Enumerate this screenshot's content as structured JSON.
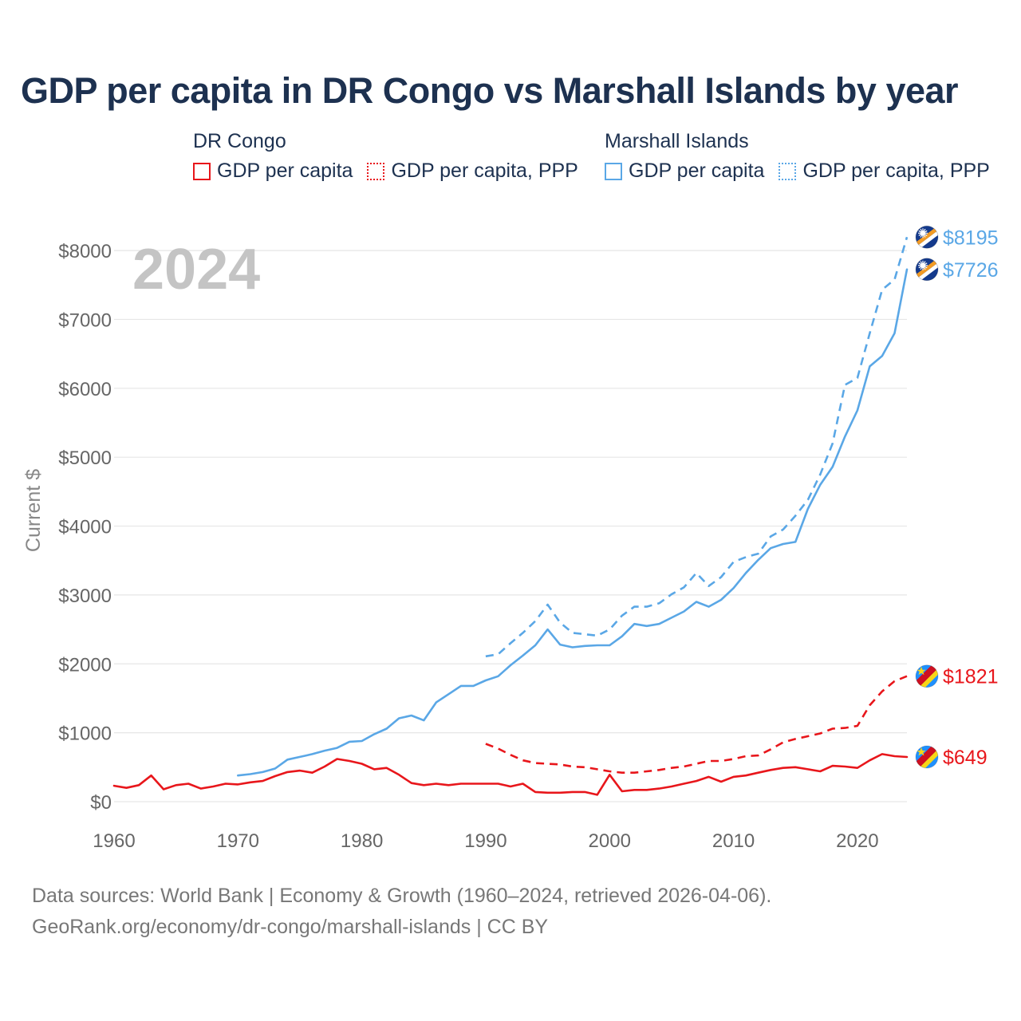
{
  "page": {
    "title": "GDP per capita in DR Congo vs Marshall Islands by year",
    "footer_sources": "Data sources: World Bank | Economy & Growth (1960–2024, retrieved 2026-04-06).",
    "footer_url": "GeoRank.org/economy/dr-congo/marshall-islands | CC BY"
  },
  "legend": {
    "groups": [
      {
        "name": "DR Congo",
        "color": "#e8161b",
        "items": [
          {
            "label": "GDP per capita",
            "style": "solid"
          },
          {
            "label": "GDP per capita, PPP",
            "style": "dotted"
          }
        ]
      },
      {
        "name": "Marshall Islands",
        "color": "#5aa7e6",
        "items": [
          {
            "label": "GDP per capita",
            "style": "solid"
          },
          {
            "label": "GDP per capita, PPP",
            "style": "dotted"
          }
        ]
      }
    ]
  },
  "icons": {
    "marshall_flag": "marshall-islands-flag-icon",
    "congo_flag": "dr-congo-flag-icon"
  },
  "chart_data": {
    "type": "line",
    "title": "GDP per capita in DR Congo vs Marshall Islands by year",
    "year_watermark": "2024",
    "xlabel": "",
    "ylabel": "Current $",
    "xlim": [
      1960,
      2024
    ],
    "ylim": [
      0,
      8800
    ],
    "x_ticks": [
      1960,
      1970,
      1980,
      1990,
      2000,
      2010,
      2020
    ],
    "y_ticks": [
      0,
      1000,
      2000,
      3000,
      4000,
      5000,
      6000,
      7000,
      8000
    ],
    "y_tick_labels": [
      "$0",
      "$1000",
      "$2000",
      "$3000",
      "$4000",
      "$5000",
      "$6000",
      "$7000",
      "$8000"
    ],
    "grid": true,
    "series": [
      {
        "name": "Marshall Islands GDP per capita, PPP",
        "country": "Marshall Islands",
        "color": "#5aa7e6",
        "dash": "dashed",
        "end_label": "$8195",
        "flag": "marshall",
        "points": [
          [
            1990,
            2110
          ],
          [
            1991,
            2140
          ],
          [
            1992,
            2300
          ],
          [
            1993,
            2450
          ],
          [
            1994,
            2620
          ],
          [
            1995,
            2860
          ],
          [
            1996,
            2600
          ],
          [
            1997,
            2450
          ],
          [
            1998,
            2430
          ],
          [
            1999,
            2410
          ],
          [
            2000,
            2500
          ],
          [
            2001,
            2700
          ],
          [
            2002,
            2830
          ],
          [
            2003,
            2830
          ],
          [
            2004,
            2880
          ],
          [
            2005,
            3010
          ],
          [
            2006,
            3110
          ],
          [
            2007,
            3320
          ],
          [
            2008,
            3130
          ],
          [
            2009,
            3260
          ],
          [
            2010,
            3480
          ],
          [
            2011,
            3550
          ],
          [
            2012,
            3600
          ],
          [
            2013,
            3850
          ],
          [
            2014,
            3950
          ],
          [
            2015,
            4150
          ],
          [
            2016,
            4380
          ],
          [
            2017,
            4750
          ],
          [
            2018,
            5200
          ],
          [
            2019,
            6050
          ],
          [
            2020,
            6150
          ],
          [
            2021,
            6800
          ],
          [
            2022,
            7430
          ],
          [
            2023,
            7580
          ],
          [
            2024,
            8195
          ]
        ]
      },
      {
        "name": "Marshall Islands GDP per capita",
        "country": "Marshall Islands",
        "color": "#5aa7e6",
        "dash": "solid",
        "end_label": "$7726",
        "flag": "marshall",
        "points": [
          [
            1970,
            380
          ],
          [
            1971,
            400
          ],
          [
            1972,
            430
          ],
          [
            1973,
            480
          ],
          [
            1974,
            610
          ],
          [
            1975,
            650
          ],
          [
            1976,
            690
          ],
          [
            1977,
            740
          ],
          [
            1978,
            780
          ],
          [
            1979,
            870
          ],
          [
            1980,
            880
          ],
          [
            1981,
            980
          ],
          [
            1982,
            1060
          ],
          [
            1983,
            1210
          ],
          [
            1984,
            1250
          ],
          [
            1985,
            1180
          ],
          [
            1986,
            1440
          ],
          [
            1987,
            1560
          ],
          [
            1988,
            1680
          ],
          [
            1989,
            1680
          ],
          [
            1990,
            1760
          ],
          [
            1991,
            1820
          ],
          [
            1992,
            1980
          ],
          [
            1993,
            2120
          ],
          [
            1994,
            2270
          ],
          [
            1995,
            2500
          ],
          [
            1996,
            2280
          ],
          [
            1997,
            2240
          ],
          [
            1998,
            2260
          ],
          [
            1999,
            2270
          ],
          [
            2000,
            2270
          ],
          [
            2001,
            2400
          ],
          [
            2002,
            2580
          ],
          [
            2003,
            2550
          ],
          [
            2004,
            2580
          ],
          [
            2005,
            2670
          ],
          [
            2006,
            2760
          ],
          [
            2007,
            2900
          ],
          [
            2008,
            2830
          ],
          [
            2009,
            2930
          ],
          [
            2010,
            3100
          ],
          [
            2011,
            3320
          ],
          [
            2012,
            3510
          ],
          [
            2013,
            3680
          ],
          [
            2014,
            3740
          ],
          [
            2015,
            3770
          ],
          [
            2016,
            4250
          ],
          [
            2017,
            4600
          ],
          [
            2018,
            4860
          ],
          [
            2019,
            5300
          ],
          [
            2020,
            5680
          ],
          [
            2021,
            6320
          ],
          [
            2022,
            6470
          ],
          [
            2023,
            6800
          ],
          [
            2024,
            7726
          ]
        ]
      },
      {
        "name": "DR Congo GDP per capita, PPP",
        "country": "DR Congo",
        "color": "#e8161b",
        "dash": "dashed",
        "end_label": "$1821",
        "flag": "congo",
        "points": [
          [
            1990,
            840
          ],
          [
            1991,
            770
          ],
          [
            1992,
            680
          ],
          [
            1993,
            600
          ],
          [
            1994,
            560
          ],
          [
            1995,
            550
          ],
          [
            1996,
            540
          ],
          [
            1997,
            510
          ],
          [
            1998,
            500
          ],
          [
            1999,
            470
          ],
          [
            2000,
            440
          ],
          [
            2001,
            420
          ],
          [
            2002,
            420
          ],
          [
            2003,
            440
          ],
          [
            2004,
            460
          ],
          [
            2005,
            490
          ],
          [
            2006,
            510
          ],
          [
            2007,
            550
          ],
          [
            2008,
            590
          ],
          [
            2009,
            590
          ],
          [
            2010,
            620
          ],
          [
            2011,
            660
          ],
          [
            2012,
            670
          ],
          [
            2013,
            760
          ],
          [
            2014,
            860
          ],
          [
            2015,
            910
          ],
          [
            2016,
            950
          ],
          [
            2017,
            990
          ],
          [
            2018,
            1060
          ],
          [
            2019,
            1070
          ],
          [
            2020,
            1100
          ],
          [
            2021,
            1400
          ],
          [
            2022,
            1600
          ],
          [
            2023,
            1750
          ],
          [
            2024,
            1821
          ]
        ]
      },
      {
        "name": "DR Congo GDP per capita",
        "country": "DR Congo",
        "color": "#e8161b",
        "dash": "solid",
        "end_label": "$649",
        "flag": "congo",
        "points": [
          [
            1960,
            230
          ],
          [
            1961,
            200
          ],
          [
            1962,
            240
          ],
          [
            1963,
            380
          ],
          [
            1964,
            180
          ],
          [
            1965,
            240
          ],
          [
            1966,
            260
          ],
          [
            1967,
            190
          ],
          [
            1968,
            220
          ],
          [
            1969,
            260
          ],
          [
            1970,
            250
          ],
          [
            1971,
            280
          ],
          [
            1972,
            300
          ],
          [
            1973,
            370
          ],
          [
            1974,
            430
          ],
          [
            1975,
            450
          ],
          [
            1976,
            420
          ],
          [
            1977,
            510
          ],
          [
            1978,
            620
          ],
          [
            1979,
            590
          ],
          [
            1980,
            550
          ],
          [
            1981,
            470
          ],
          [
            1982,
            490
          ],
          [
            1983,
            390
          ],
          [
            1984,
            270
          ],
          [
            1985,
            240
          ],
          [
            1986,
            260
          ],
          [
            1987,
            240
          ],
          [
            1988,
            260
          ],
          [
            1989,
            260
          ],
          [
            1990,
            260
          ],
          [
            1991,
            260
          ],
          [
            1992,
            220
          ],
          [
            1993,
            260
          ],
          [
            1994,
            140
          ],
          [
            1995,
            130
          ],
          [
            1996,
            130
          ],
          [
            1997,
            140
          ],
          [
            1998,
            140
          ],
          [
            1999,
            100
          ],
          [
            2000,
            390
          ],
          [
            2001,
            150
          ],
          [
            2002,
            170
          ],
          [
            2003,
            170
          ],
          [
            2004,
            190
          ],
          [
            2005,
            220
          ],
          [
            2006,
            260
          ],
          [
            2007,
            300
          ],
          [
            2008,
            360
          ],
          [
            2009,
            290
          ],
          [
            2010,
            360
          ],
          [
            2011,
            380
          ],
          [
            2012,
            420
          ],
          [
            2013,
            460
          ],
          [
            2014,
            490
          ],
          [
            2015,
            500
          ],
          [
            2016,
            470
          ],
          [
            2017,
            440
          ],
          [
            2018,
            520
          ],
          [
            2019,
            510
          ],
          [
            2020,
            490
          ],
          [
            2021,
            600
          ],
          [
            2022,
            690
          ],
          [
            2023,
            660
          ],
          [
            2024,
            649
          ]
        ]
      }
    ]
  }
}
